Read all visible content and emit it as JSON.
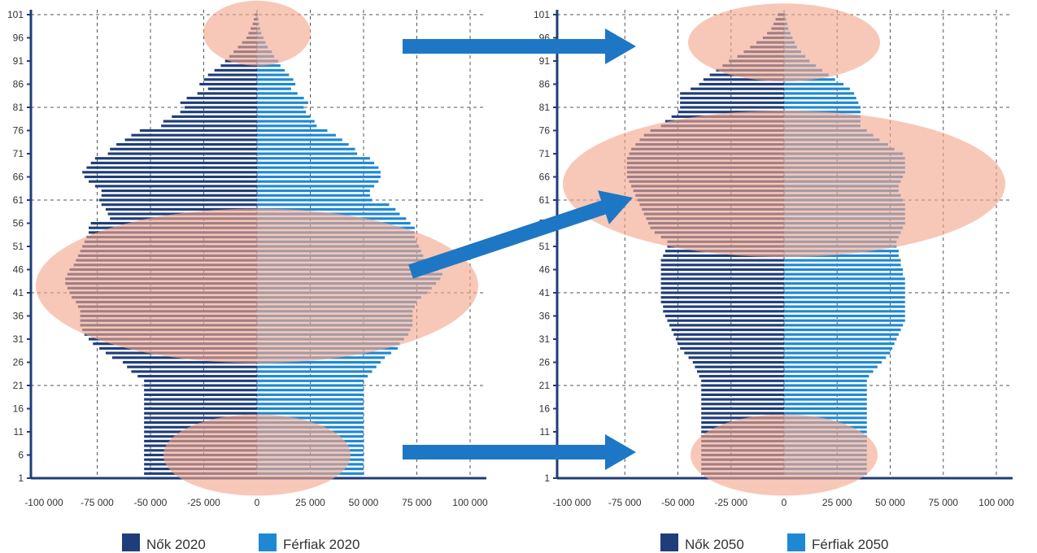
{
  "chart_data": [
    {
      "type": "bar",
      "orientation": "horizontal",
      "subtype": "population-pyramid",
      "x_ticks": [
        "-100 000",
        "-75 000",
        "-50 000",
        "-25 000",
        "0",
        "25 000",
        "50 000",
        "75 000",
        "100 000"
      ],
      "xlim": [
        -100000,
        100000
      ],
      "y_ticks": [
        "1",
        "6",
        "11",
        "16",
        "21",
        "26",
        "31",
        "36",
        "41",
        "46",
        "51",
        "56",
        "61",
        "66",
        "71",
        "76",
        "81",
        "86",
        "91",
        "96",
        "101"
      ],
      "age_range": [
        1,
        101
      ],
      "grid": true,
      "legend": "bottom",
      "series": [
        {
          "name": "Nők 2020",
          "color": "#1f3d7a",
          "side": "negative",
          "values": [
            -52000,
            -53000,
            -53000,
            -53000,
            -53000,
            -53000,
            -53000,
            -53000,
            -53000,
            -53000,
            -53000,
            -53000,
            -53000,
            -53000,
            -53000,
            -53000,
            -53000,
            -53000,
            -53000,
            -53000,
            -53000,
            -53000,
            -56000,
            -59000,
            -61000,
            -63000,
            -68000,
            -71000,
            -74000,
            -77000,
            -79000,
            -81000,
            -82000,
            -83000,
            -83000,
            -83000,
            -83000,
            -84000,
            -85000,
            -87000,
            -88000,
            -89000,
            -90000,
            -90000,
            -89000,
            -88000,
            -86000,
            -85000,
            -84000,
            -83000,
            -82000,
            -81000,
            -80000,
            -79000,
            -79000,
            -78000,
            -69000,
            -70000,
            -71000,
            -73000,
            -74000,
            -73000,
            -73000,
            -76000,
            -79000,
            -81000,
            -82000,
            -80000,
            -78000,
            -76000,
            -70000,
            -69000,
            -66000,
            -62000,
            -59000,
            -55000,
            -45000,
            -44000,
            -40000,
            -36000,
            -34000,
            -36000,
            -33000,
            -28000,
            -23000,
            -27000,
            -25000,
            -23000,
            -20000,
            -17000,
            -15000,
            -13000,
            -11000,
            -9000,
            -7000,
            -5000,
            -4000,
            -3000,
            -2000,
            -1500,
            -1000
          ]
        },
        {
          "name": "Férfiak 2020",
          "color": "#1e88d4",
          "side": "positive",
          "values": [
            49000,
            50000,
            50000,
            50000,
            50000,
            50000,
            50000,
            50000,
            50000,
            50000,
            50000,
            50000,
            50000,
            50000,
            50000,
            50000,
            50000,
            50000,
            50000,
            50000,
            50000,
            50000,
            52000,
            54000,
            56000,
            58000,
            60000,
            63000,
            66000,
            67000,
            69000,
            71000,
            72000,
            73000,
            73000,
            73000,
            73000,
            74000,
            75000,
            77000,
            80000,
            82000,
            84000,
            86000,
            87000,
            85000,
            82000,
            80000,
            78000,
            77000,
            76000,
            75000,
            74000,
            74000,
            74000,
            72000,
            70000,
            67000,
            65000,
            62000,
            54000,
            53000,
            53000,
            55000,
            57000,
            58000,
            58000,
            57000,
            55000,
            53000,
            47000,
            46000,
            43000,
            40000,
            37000,
            33000,
            28000,
            27000,
            25000,
            23000,
            22000,
            24000,
            22000,
            19000,
            16000,
            18000,
            17000,
            15000,
            13000,
            11000,
            10000,
            8000,
            7000,
            5000,
            4000,
            3000,
            2000,
            1500,
            1000,
            700,
            400
          ]
        },
        {
          "name": "Nők 2050",
          "color": "#1f3d7a",
          "side": "negative",
          "values": [
            -39000,
            -39000,
            -39000,
            -39000,
            -39000,
            -39000,
            -39000,
            -39000,
            -39000,
            -39000,
            -39000,
            -39000,
            -39000,
            -39000,
            -39000,
            -39000,
            -39000,
            -39000,
            -39000,
            -39000,
            -39000,
            -39000,
            -40000,
            -41000,
            -42000,
            -43000,
            -45000,
            -47000,
            -49000,
            -50000,
            -51000,
            -52000,
            -53000,
            -54000,
            -55000,
            -56000,
            -57000,
            -57000,
            -58000,
            -58000,
            -58000,
            -58000,
            -58000,
            -58000,
            -58000,
            -58000,
            -58000,
            -58000,
            -57000,
            -56000,
            -55000,
            -55000,
            -58000,
            -61000,
            -63000,
            -64000,
            -65000,
            -66000,
            -67000,
            -68000,
            -69000,
            -70000,
            -71000,
            -72000,
            -73000,
            -74000,
            -74000,
            -74000,
            -74000,
            -74000,
            -73000,
            -72000,
            -70000,
            -68000,
            -66000,
            -63000,
            -58000,
            -56000,
            -53000,
            -50000,
            -49000,
            -49000,
            -49000,
            -49000,
            -44000,
            -40000,
            -38000,
            -35000,
            -32000,
            -29000,
            -26000,
            -22000,
            -19000,
            -16000,
            -13000,
            -10000,
            -8000,
            -6000,
            -5000,
            -4000,
            -3000
          ]
        },
        {
          "name": "Férfiak 2050",
          "color": "#1e88d4",
          "side": "positive",
          "values": [
            38000,
            39000,
            39000,
            39000,
            39000,
            39000,
            39000,
            39000,
            39000,
            39000,
            39000,
            39000,
            39000,
            39000,
            39000,
            39000,
            39000,
            39000,
            39000,
            39000,
            39000,
            39000,
            40000,
            42000,
            44000,
            46000,
            48000,
            50000,
            51000,
            52000,
            53000,
            54000,
            55000,
            56000,
            57000,
            57000,
            57000,
            57000,
            57000,
            57000,
            57000,
            57000,
            57000,
            57000,
            56000,
            56000,
            55000,
            55000,
            54000,
            54000,
            53000,
            53000,
            54000,
            55000,
            56000,
            57000,
            57000,
            57000,
            57000,
            57000,
            56000,
            55000,
            54000,
            54000,
            55000,
            56000,
            57000,
            57000,
            57000,
            57000,
            56000,
            52000,
            49000,
            45000,
            42000,
            39000,
            36000,
            36000,
            36000,
            36000,
            36000,
            35000,
            34000,
            33000,
            31000,
            28000,
            24000,
            21000,
            18000,
            15000,
            12000,
            10000,
            8000,
            6000,
            5000,
            4000,
            3000,
            2000,
            1500,
            1000,
            700
          ]
        }
      ],
      "annotations": {
        "highlight_color": "#f2a78c",
        "arrow_color": "#1e77c4",
        "highlights": [
          {
            "chart": "2020",
            "ages": [
              93,
              101
            ]
          },
          {
            "chart": "2020",
            "ages": [
              27,
              58
            ]
          },
          {
            "chart": "2020",
            "ages": [
              1,
              11
            ]
          },
          {
            "chart": "2050",
            "ages": [
              89,
              101
            ]
          },
          {
            "chart": "2050",
            "ages": [
              50,
              79
            ]
          },
          {
            "chart": "2050",
            "ages": [
              1,
              11
            ]
          }
        ],
        "arrows": [
          {
            "from": "2020 ages 93-101",
            "to": "2050 ages 89-101"
          },
          {
            "from": "2020 ages 27-58",
            "to": "2050 ages 50-79"
          },
          {
            "from": "2020 ages 1-11",
            "to": "2050 ages 1-11"
          }
        ]
      }
    }
  ]
}
